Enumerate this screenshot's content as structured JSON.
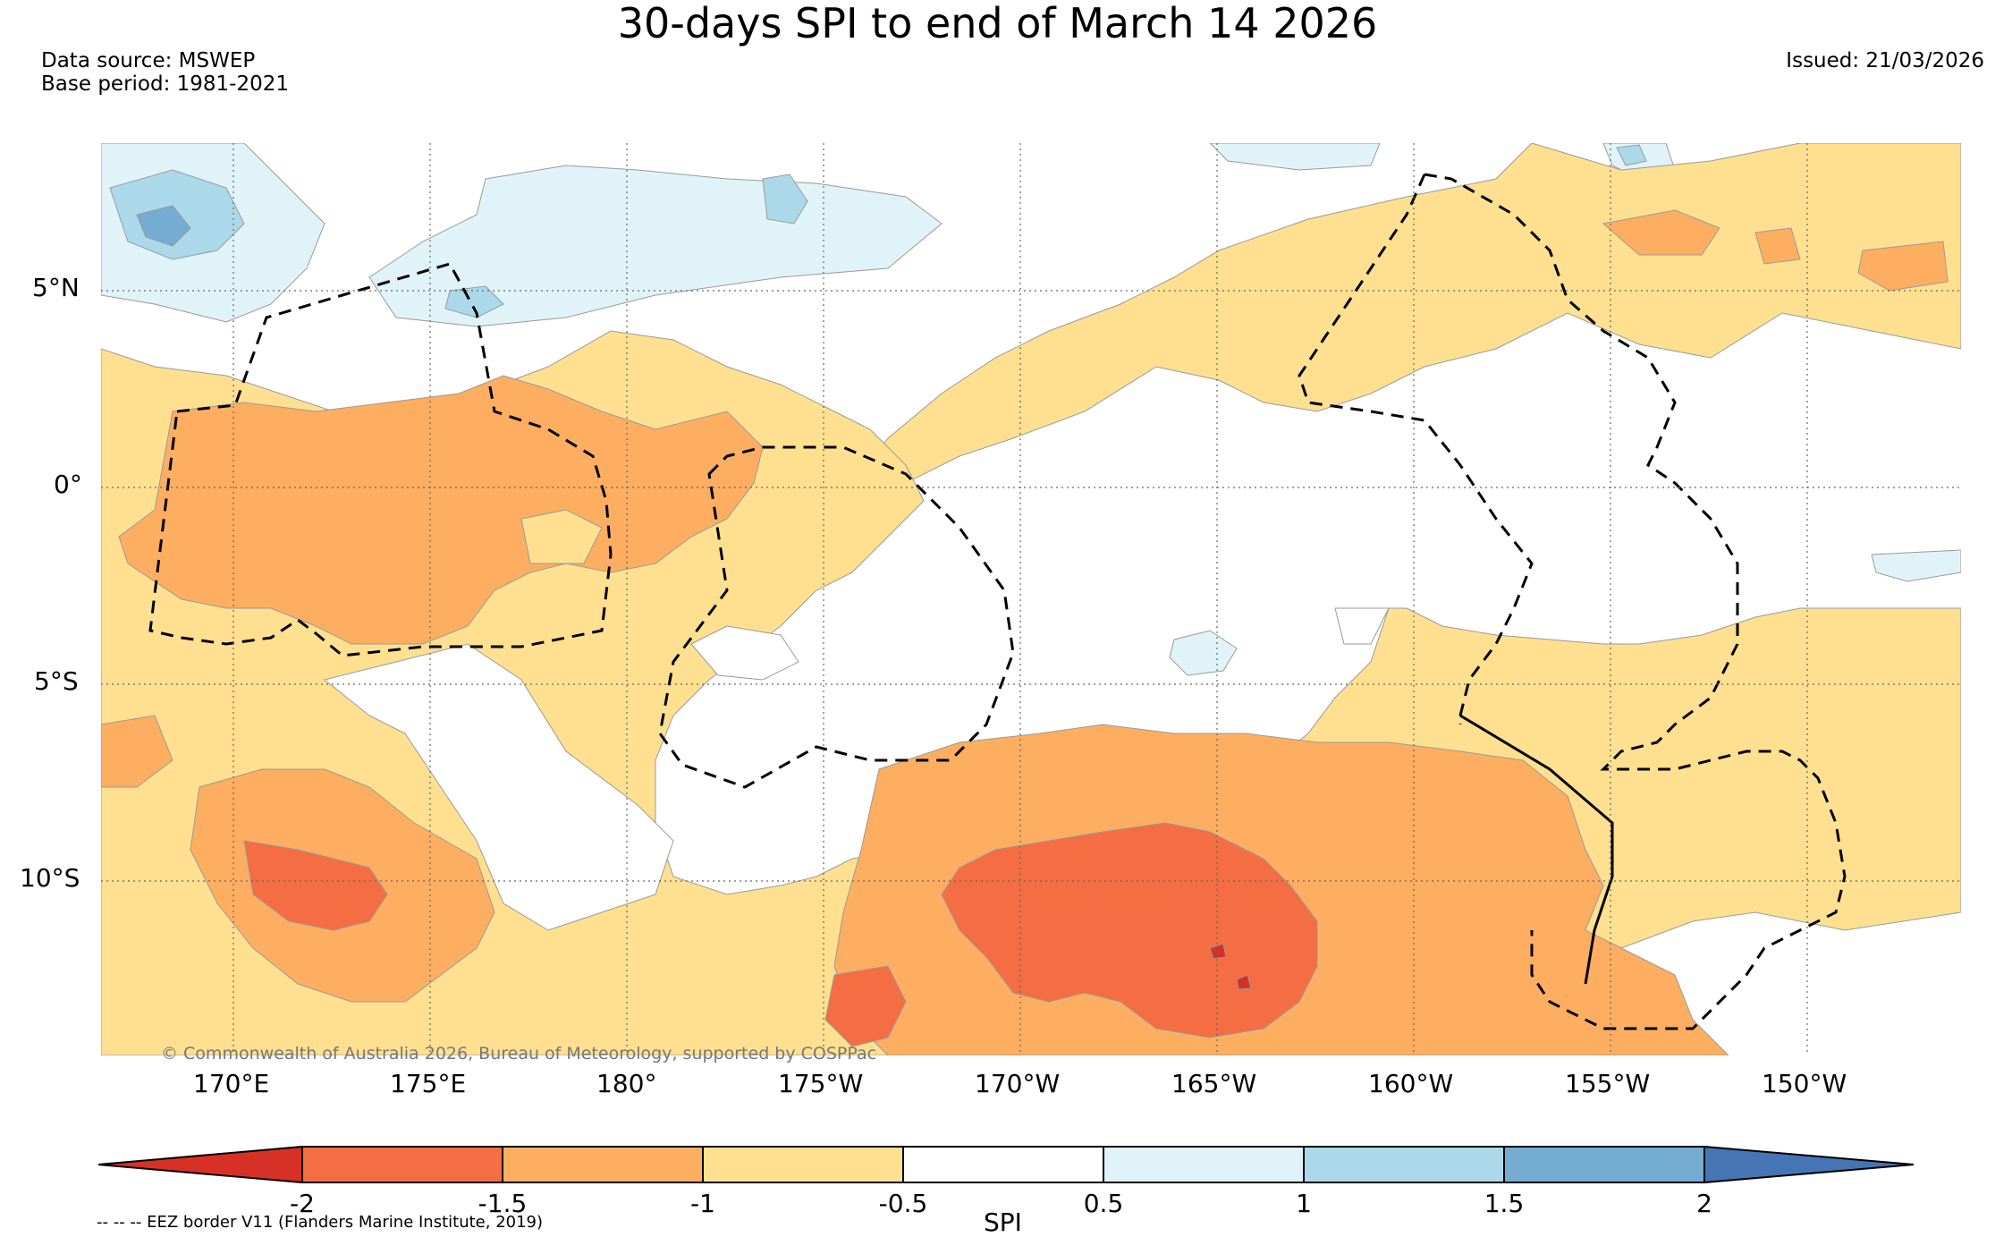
{
  "title": "30-days SPI to end of March 14 2026",
  "data_source": "Data source: MSWEP",
  "base_period": "Base period: 1981-2021",
  "issued": "Issued: 21/03/2026",
  "copyright": "© Commonwealth of Australia 2026, Bureau of Meteorology, supported by COSPPac",
  "eez_note": "-- -- -- EEZ border V11 (Flanders Marine Institute, 2019)",
  "lat_ticks": [
    "5°N",
    "0°",
    "5°S",
    "10°S"
  ],
  "lon_ticks": [
    "170°E",
    "175°E",
    "180°",
    "175°W",
    "170°W",
    "165°W",
    "160°W",
    "155°W",
    "150°W"
  ],
  "colorbar": {
    "label": "SPI",
    "ticks": [
      "-2",
      "-1.5",
      "-1",
      "-0.5",
      "0.5",
      "1",
      "1.5",
      "2"
    ],
    "colors": {
      "extreme_dry": "#d73027",
      "very_dry": "#f46d43",
      "dry": "#fdae61",
      "moderately_dry": "#fee090",
      "normal": "#ffffff",
      "moderately_wet": "#e0f3f8",
      "wet": "#abd9e9",
      "very_wet": "#74add1",
      "extreme_wet": "#4575b4"
    }
  }
}
